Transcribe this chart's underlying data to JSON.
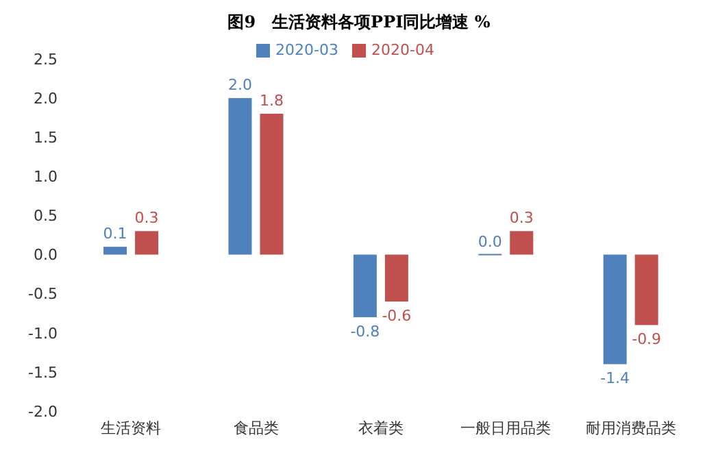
{
  "chart_data": {
    "type": "bar",
    "title": "图9　生活资料各项PPI同比增速 %",
    "categories": [
      "生活资料",
      "食品类",
      "衣着类",
      "一般日用品类",
      "耐用消费品类"
    ],
    "series": [
      {
        "name": "2020-03",
        "color": "#4f81bd",
        "values": [
          0.1,
          2.0,
          -0.8,
          0.0,
          -1.4
        ],
        "value_labels": [
          "0.1",
          "2.0",
          "-0.8",
          "0.0",
          "-1.4"
        ]
      },
      {
        "name": "2020-04",
        "color": "#c0504d",
        "values": [
          0.3,
          1.8,
          -0.6,
          0.3,
          -0.9
        ],
        "value_labels": [
          "0.3",
          "1.8",
          "-0.6",
          "0.3",
          "-0.9"
        ]
      }
    ],
    "ylim": [
      -2.0,
      2.5
    ],
    "yticks": [
      {
        "value": -2,
        "label": "-2.0"
      },
      {
        "value": -1.5,
        "label": "-1.5"
      },
      {
        "value": -1,
        "label": "-1.0"
      },
      {
        "value": -0.5,
        "label": "-0.5"
      },
      {
        "value": 0,
        "label": "0.0"
      },
      {
        "value": 0.5,
        "label": "0.5"
      },
      {
        "value": 1,
        "label": "1.0"
      },
      {
        "value": 1.5,
        "label": "1.5"
      },
      {
        "value": 2,
        "label": "2.0"
      },
      {
        "value": 2.5,
        "label": "2.5"
      }
    ],
    "grid": false,
    "legend": "top"
  }
}
